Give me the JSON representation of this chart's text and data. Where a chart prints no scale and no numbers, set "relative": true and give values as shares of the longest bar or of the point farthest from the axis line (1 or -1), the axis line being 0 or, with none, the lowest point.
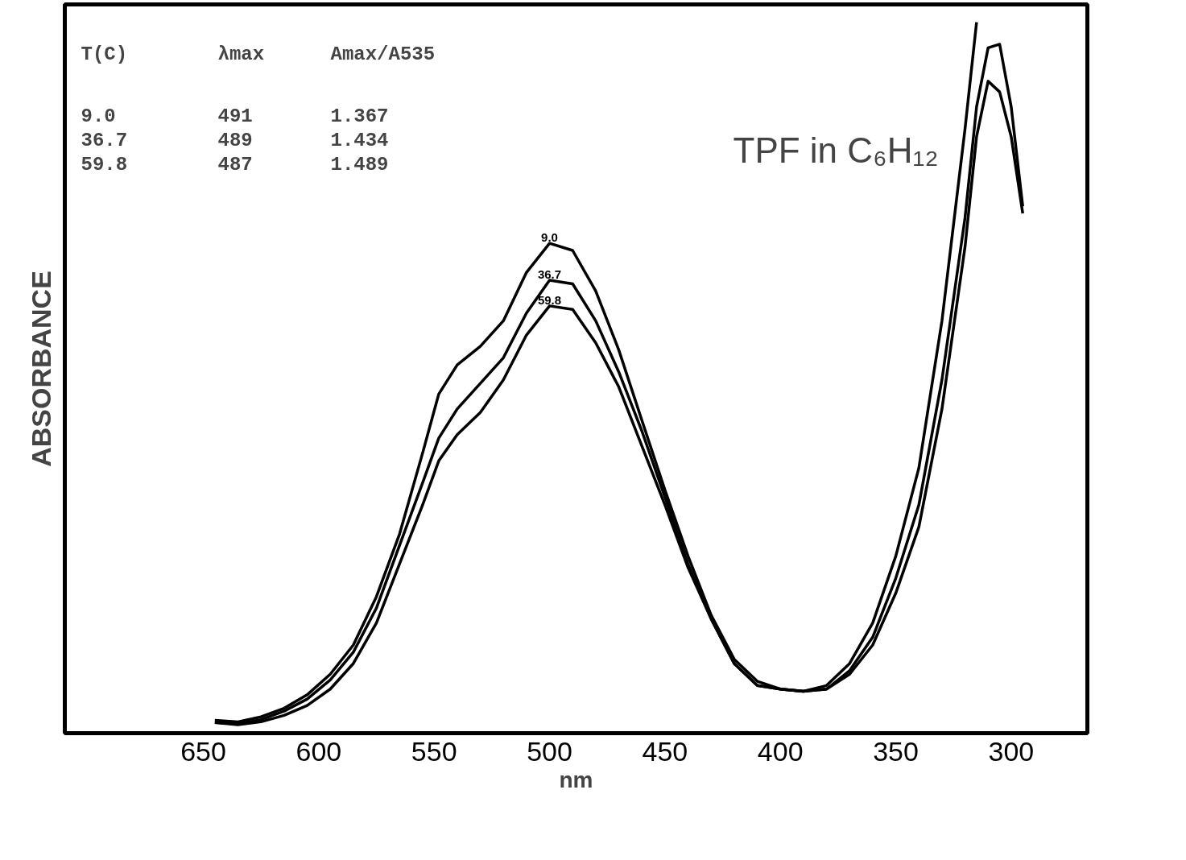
{
  "chart_data": {
    "type": "line",
    "title": "TPF in C₆H₁₂",
    "xlabel": "nm",
    "ylabel": "ABSORBANCE",
    "relative": true,
    "x": [
      645,
      635,
      625,
      615,
      605,
      595,
      585,
      575,
      565,
      555,
      548,
      540,
      530,
      520,
      510,
      500,
      490,
      480,
      470,
      460,
      450,
      440,
      430,
      420,
      410,
      400,
      390,
      380,
      370,
      360,
      350,
      340,
      330,
      320,
      315,
      310,
      305,
      300,
      295
    ],
    "xlim": [
      710,
      267
    ],
    "xticks": [
      650,
      600,
      550,
      500,
      450,
      400,
      350,
      300
    ],
    "grid": false,
    "marker": "none",
    "line_style": "solid",
    "annotations": [
      "T(C)",
      "λmax",
      "Amax/A535",
      "9.0",
      "491",
      "1.367",
      "36.7",
      "489",
      "1.434",
      "59.8",
      "487",
      "1.489"
    ],
    "series": [
      {
        "name": "9.0",
        "color": "#000000",
        "values": [
          0.018,
          0.016,
          0.023,
          0.035,
          0.054,
          0.083,
          0.124,
          0.192,
          0.28,
          0.394,
          0.477,
          0.518,
          0.544,
          0.58,
          0.648,
          0.689,
          0.679,
          0.622,
          0.539,
          0.44,
          0.342,
          0.249,
          0.166,
          0.104,
          0.073,
          0.062,
          0.059,
          0.067,
          0.098,
          0.155,
          0.249,
          0.373,
          0.58,
          0.85,
          1.0,
          null,
          null,
          null,
          null
        ]
      },
      {
        "name": "36.7",
        "color": "#000000",
        "values": [
          0.015,
          0.013,
          0.019,
          0.031,
          0.048,
          0.075,
          0.114,
          0.176,
          0.264,
          0.352,
          0.415,
          0.456,
          0.492,
          0.528,
          0.591,
          0.637,
          0.632,
          0.58,
          0.508,
          0.425,
          0.332,
          0.238,
          0.161,
          0.098,
          0.067,
          0.062,
          0.059,
          0.062,
          0.088,
          0.135,
          0.218,
          0.321,
          0.497,
          0.725,
          0.881,
          0.964,
          0.969,
          0.881,
          0.741
        ]
      },
      {
        "name": "59.8",
        "color": "#000000",
        "values": [
          0.015,
          0.012,
          0.016,
          0.025,
          0.039,
          0.062,
          0.098,
          0.155,
          0.238,
          0.321,
          0.383,
          0.42,
          0.451,
          0.497,
          0.56,
          0.601,
          0.596,
          0.549,
          0.487,
          0.404,
          0.321,
          0.233,
          0.161,
          0.098,
          0.067,
          0.062,
          0.059,
          0.062,
          0.083,
          0.124,
          0.197,
          0.29,
          0.456,
          0.684,
          0.839,
          0.917,
          0.902,
          0.839,
          0.731
        ]
      }
    ]
  }
}
